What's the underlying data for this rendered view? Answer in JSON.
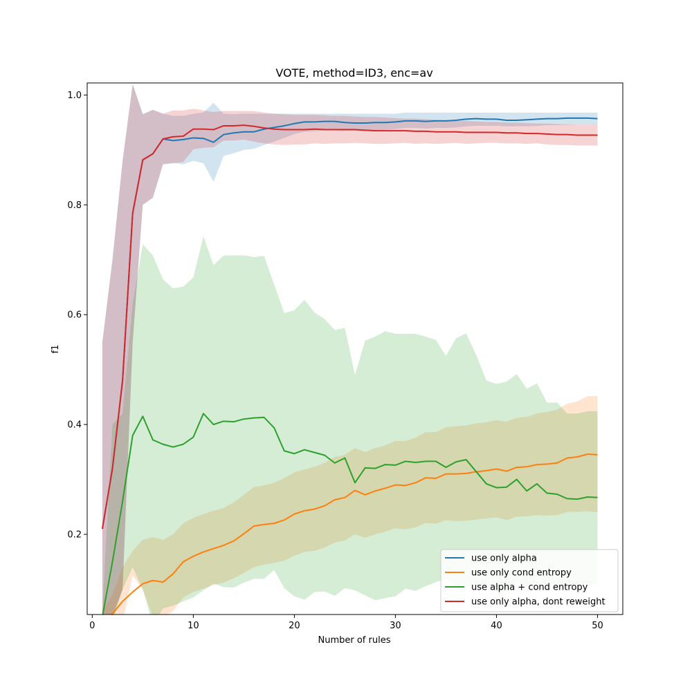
{
  "chart_data": {
    "type": "line",
    "title": "VOTE, method=ID3, enc=av",
    "xlabel": "Number of rules",
    "ylabel": "f1",
    "xlim": [
      -0.5,
      52.5
    ],
    "ylim": [
      0.054,
      1.022
    ],
    "xticks": [
      0,
      10,
      20,
      30,
      40,
      50
    ],
    "xtick_labels": [
      "0",
      "10",
      "20",
      "30",
      "40",
      "50"
    ],
    "yticks": [
      0.2,
      0.4,
      0.6,
      0.8,
      1.0
    ],
    "ytick_labels": [
      "0.2",
      "0.4",
      "0.6",
      "0.8",
      "1.0"
    ],
    "grid": false,
    "legend_position": "lower-right",
    "x": [
      1,
      2,
      3,
      4,
      5,
      6,
      7,
      8,
      9,
      10,
      11,
      12,
      13,
      14,
      15,
      16,
      17,
      18,
      19,
      20,
      21,
      22,
      23,
      24,
      25,
      26,
      27,
      28,
      29,
      30,
      31,
      32,
      33,
      34,
      35,
      36,
      37,
      38,
      39,
      40,
      41,
      42,
      43,
      44,
      45,
      46,
      47,
      48,
      49,
      50
    ],
    "series": [
      {
        "name": "use only alpha",
        "color": "#1f77b4",
        "values": [
          0.21,
          0.32,
          0.48,
          0.785,
          0.882,
          0.893,
          0.92,
          0.917,
          0.919,
          0.922,
          0.921,
          0.914,
          0.928,
          0.931,
          0.933,
          0.933,
          0.938,
          0.941,
          0.944,
          0.948,
          0.951,
          0.951,
          0.952,
          0.952,
          0.95,
          0.949,
          0.949,
          0.95,
          0.95,
          0.951,
          0.953,
          0.953,
          0.952,
          0.953,
          0.953,
          0.954,
          0.956,
          0.957,
          0.956,
          0.956,
          0.954,
          0.954,
          0.955,
          0.956,
          0.957,
          0.957,
          0.958,
          0.958,
          0.958,
          0.957
        ],
        "upper": [
          0.55,
          0.7,
          0.88,
          1.02,
          0.965,
          0.973,
          0.966,
          0.962,
          0.962,
          0.966,
          0.968,
          0.986,
          0.966,
          0.965,
          0.966,
          0.966,
          0.966,
          0.966,
          0.966,
          0.966,
          0.966,
          0.966,
          0.966,
          0.966,
          0.966,
          0.966,
          0.966,
          0.966,
          0.966,
          0.966,
          0.968,
          0.968,
          0.968,
          0.968,
          0.968,
          0.968,
          0.968,
          0.968,
          0.968,
          0.968,
          0.968,
          0.968,
          0.968,
          0.968,
          0.968,
          0.968,
          0.968,
          0.968,
          0.968,
          0.968
        ],
        "lower": [
          0.05,
          0.05,
          0.1,
          0.55,
          0.8,
          0.813,
          0.874,
          0.876,
          0.874,
          0.88,
          0.876,
          0.842,
          0.889,
          0.894,
          0.9,
          0.902,
          0.909,
          0.915,
          0.922,
          0.929,
          0.933,
          0.934,
          0.936,
          0.936,
          0.935,
          0.935,
          0.935,
          0.936,
          0.937,
          0.938,
          0.94,
          0.94,
          0.939,
          0.94,
          0.94,
          0.941,
          0.943,
          0.944,
          0.944,
          0.944,
          0.943,
          0.943,
          0.943,
          0.944,
          0.945,
          0.945,
          0.946,
          0.946,
          0.946,
          0.946
        ]
      },
      {
        "name": "use only cond entropy",
        "color": "#ff7f0e",
        "values": [
          0.05,
          0.055,
          0.078,
          0.095,
          0.11,
          0.116,
          0.113,
          0.128,
          0.15,
          0.16,
          0.168,
          0.174,
          0.18,
          0.188,
          0.201,
          0.215,
          0.218,
          0.22,
          0.226,
          0.237,
          0.243,
          0.246,
          0.252,
          0.263,
          0.267,
          0.28,
          0.272,
          0.279,
          0.284,
          0.29,
          0.289,
          0.294,
          0.303,
          0.302,
          0.31,
          0.31,
          0.311,
          0.314,
          0.316,
          0.319,
          0.315,
          0.322,
          0.323,
          0.327,
          0.328,
          0.33,
          0.339,
          0.341,
          0.346,
          0.345
        ],
        "upper": [
          0.06,
          0.09,
          0.14,
          0.17,
          0.19,
          0.195,
          0.19,
          0.2,
          0.22,
          0.23,
          0.237,
          0.243,
          0.248,
          0.258,
          0.272,
          0.286,
          0.289,
          0.294,
          0.302,
          0.313,
          0.318,
          0.323,
          0.33,
          0.341,
          0.345,
          0.357,
          0.35,
          0.357,
          0.362,
          0.37,
          0.37,
          0.376,
          0.386,
          0.386,
          0.395,
          0.397,
          0.398,
          0.402,
          0.404,
          0.408,
          0.405,
          0.412,
          0.414,
          0.42,
          0.423,
          0.427,
          0.438,
          0.442,
          0.452,
          0.452
        ],
        "lower": [
          0.04,
          0.04,
          0.04,
          0.125,
          0.1,
          0.05,
          0.05,
          0.06,
          0.085,
          0.095,
          0.101,
          0.108,
          0.112,
          0.12,
          0.13,
          0.14,
          0.145,
          0.148,
          0.152,
          0.161,
          0.168,
          0.17,
          0.176,
          0.185,
          0.189,
          0.2,
          0.194,
          0.2,
          0.205,
          0.211,
          0.209,
          0.213,
          0.221,
          0.219,
          0.226,
          0.224,
          0.225,
          0.227,
          0.229,
          0.231,
          0.226,
          0.232,
          0.233,
          0.235,
          0.234,
          0.235,
          0.241,
          0.241,
          0.242,
          0.24
        ]
      },
      {
        "name": "use alpha + cond entropy",
        "color": "#2ca02c",
        "values": [
          0.05,
          0.15,
          0.26,
          0.38,
          0.415,
          0.372,
          0.364,
          0.359,
          0.364,
          0.377,
          0.42,
          0.4,
          0.406,
          0.405,
          0.41,
          0.412,
          0.413,
          0.394,
          0.352,
          0.347,
          0.354,
          0.349,
          0.344,
          0.33,
          0.339,
          0.294,
          0.321,
          0.32,
          0.327,
          0.326,
          0.333,
          0.331,
          0.333,
          0.333,
          0.322,
          0.332,
          0.336,
          0.314,
          0.292,
          0.285,
          0.286,
          0.3,
          0.279,
          0.292,
          0.275,
          0.273,
          0.265,
          0.264,
          0.268,
          0.267
        ],
        "upper": [
          0.06,
          0.4,
          0.42,
          0.62,
          0.728,
          0.708,
          0.664,
          0.648,
          0.651,
          0.668,
          0.743,
          0.69,
          0.708,
          0.708,
          0.708,
          0.705,
          0.707,
          0.655,
          0.603,
          0.608,
          0.627,
          0.604,
          0.592,
          0.572,
          0.576,
          0.49,
          0.553,
          0.56,
          0.57,
          0.565,
          0.565,
          0.565,
          0.56,
          0.554,
          0.525,
          0.557,
          0.566,
          0.526,
          0.48,
          0.474,
          0.478,
          0.492,
          0.465,
          0.475,
          0.44,
          0.44,
          0.42,
          0.42,
          0.424,
          0.424
        ],
        "lower": [
          0.04,
          0.04,
          0.1,
          0.14,
          0.1,
          0.035,
          0.065,
          0.07,
          0.078,
          0.085,
          0.098,
          0.11,
          0.104,
          0.103,
          0.112,
          0.119,
          0.119,
          0.135,
          0.102,
          0.087,
          0.081,
          0.095,
          0.096,
          0.088,
          0.102,
          0.098,
          0.089,
          0.08,
          0.084,
          0.087,
          0.101,
          0.097,
          0.106,
          0.113,
          0.119,
          0.107,
          0.106,
          0.103,
          0.104,
          0.096,
          0.094,
          0.108,
          0.093,
          0.109,
          0.11,
          0.106,
          0.11,
          0.108,
          0.112,
          0.11
        ]
      },
      {
        "name": "use only alpha, dont reweight",
        "color": "#d62728",
        "values": [
          0.21,
          0.32,
          0.48,
          0.785,
          0.882,
          0.893,
          0.92,
          0.924,
          0.925,
          0.938,
          0.938,
          0.937,
          0.944,
          0.944,
          0.945,
          0.943,
          0.94,
          0.938,
          0.937,
          0.937,
          0.937,
          0.938,
          0.937,
          0.937,
          0.937,
          0.937,
          0.936,
          0.935,
          0.935,
          0.935,
          0.935,
          0.934,
          0.934,
          0.933,
          0.933,
          0.933,
          0.932,
          0.932,
          0.932,
          0.932,
          0.931,
          0.931,
          0.93,
          0.93,
          0.929,
          0.928,
          0.928,
          0.927,
          0.927,
          0.927
        ],
        "upper": [
          0.55,
          0.7,
          0.88,
          1.02,
          0.965,
          0.973,
          0.966,
          0.972,
          0.972,
          0.975,
          0.972,
          0.969,
          0.971,
          0.971,
          0.971,
          0.971,
          0.968,
          0.966,
          0.965,
          0.964,
          0.964,
          0.964,
          0.963,
          0.962,
          0.962,
          0.961,
          0.96,
          0.96,
          0.959,
          0.958,
          0.957,
          0.957,
          0.956,
          0.955,
          0.954,
          0.953,
          0.953,
          0.952,
          0.951,
          0.951,
          0.95,
          0.95,
          0.949,
          0.948,
          0.948,
          0.947,
          0.947,
          0.946,
          0.946,
          0.946
        ],
        "lower": [
          0.05,
          0.05,
          0.1,
          0.55,
          0.8,
          0.813,
          0.874,
          0.876,
          0.878,
          0.901,
          0.904,
          0.905,
          0.917,
          0.917,
          0.919,
          0.915,
          0.912,
          0.91,
          0.909,
          0.91,
          0.91,
          0.912,
          0.911,
          0.912,
          0.912,
          0.913,
          0.912,
          0.911,
          0.911,
          0.912,
          0.913,
          0.911,
          0.912,
          0.911,
          0.912,
          0.913,
          0.911,
          0.912,
          0.913,
          0.913,
          0.912,
          0.912,
          0.911,
          0.912,
          0.91,
          0.909,
          0.909,
          0.908,
          0.908,
          0.908
        ]
      }
    ]
  }
}
